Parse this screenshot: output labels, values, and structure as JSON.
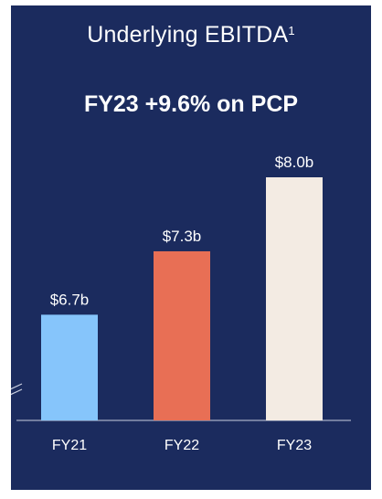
{
  "title": "Underlying EBITDA",
  "title_superscript": "1",
  "subtitle": "FY23 +9.6% on PCP",
  "colors": {
    "background": "#1b2b5e",
    "text": "#ffffff",
    "axis": "#c9cfe0"
  },
  "chart_data": {
    "type": "bar",
    "categories": [
      "FY21",
      "FY22",
      "FY23"
    ],
    "values": [
      6.7,
      7.3,
      8.0
    ],
    "data_labels": [
      "$6.7b",
      "$7.3b",
      "$8.0b"
    ],
    "bar_colors": [
      "#86c5fb",
      "#e86f55",
      "#f3ebe3"
    ],
    "title": "Underlying EBITDA",
    "xlabel": "",
    "ylabel": "",
    "ylim": [
      5.7,
      8.0
    ],
    "axis_break": true,
    "grid": false,
    "legend": "none"
  }
}
